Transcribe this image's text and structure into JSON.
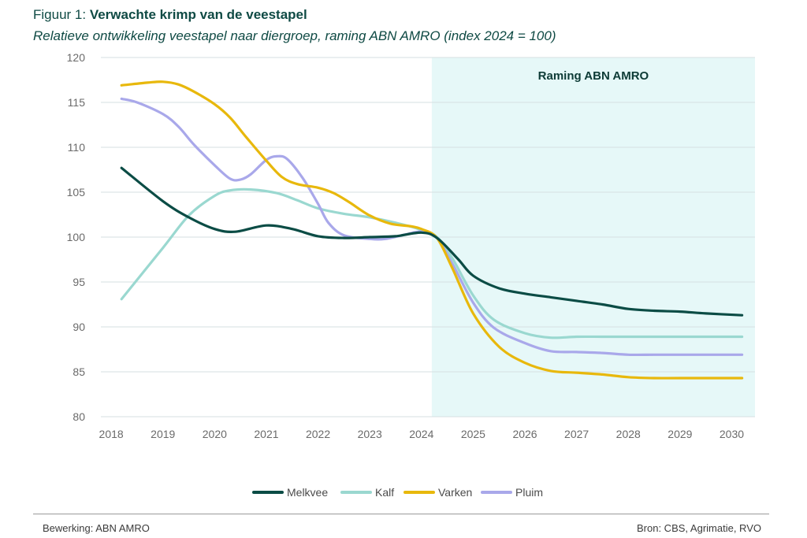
{
  "header": {
    "figure_prefix": "Figuur 1: ",
    "title": "Verwachte krimp van de veestapel",
    "subtitle": "Relatieve ontwikkeling veestapel naar diergroep, raming ABN AMRO (index 2024 = 100)"
  },
  "chart_data": {
    "type": "line",
    "title": "Verwachte krimp van de veestapel",
    "subtitle": "Relatieve ontwikkeling veestapel naar diergroep, raming ABN AMRO (index 2024 = 100)",
    "xlabel": "",
    "ylabel": "",
    "x": [
      2018,
      2019,
      2020,
      2021,
      2022,
      2023,
      2024,
      2025,
      2026,
      2027,
      2028,
      2029,
      2030
    ],
    "x_tick_labels": [
      "2018",
      "2019",
      "2020",
      "2021",
      "2022",
      "2023",
      "2024",
      "2025",
      "2026",
      "2027",
      "2028",
      "2029",
      "2030"
    ],
    "xlim": [
      2017.8,
      2030.45
    ],
    "ylim": [
      80,
      120
    ],
    "y_ticks": [
      80,
      85,
      90,
      95,
      100,
      105,
      110,
      115,
      120
    ],
    "y_tick_labels": [
      "80",
      "85",
      "90",
      "95",
      "100",
      "105",
      "110",
      "115",
      "120"
    ],
    "grid": "horizontal",
    "legend_position": "bottom-center",
    "forecast_region": {
      "label": "Raming ABN AMRO",
      "from": 2024.2,
      "to": 2030.45,
      "color": "#e6f8f8"
    },
    "series": [
      {
        "name": "Melkvee",
        "color": "#0b4c45",
        "points": [
          [
            2018.2,
            107.7
          ],
          [
            2019.0,
            104.0
          ],
          [
            2019.5,
            102.2
          ],
          [
            2020.0,
            100.9
          ],
          [
            2020.4,
            100.6
          ],
          [
            2021.0,
            101.3
          ],
          [
            2021.5,
            100.9
          ],
          [
            2022.0,
            100.1
          ],
          [
            2022.5,
            99.9
          ],
          [
            2023.0,
            100.0
          ],
          [
            2023.5,
            100.1
          ],
          [
            2024.0,
            100.5
          ],
          [
            2024.3,
            99.9
          ],
          [
            2024.7,
            97.6
          ],
          [
            2025.0,
            95.7
          ],
          [
            2025.5,
            94.3
          ],
          [
            2026.0,
            93.7
          ],
          [
            2026.5,
            93.3
          ],
          [
            2027.0,
            92.9
          ],
          [
            2027.5,
            92.5
          ],
          [
            2028.0,
            92.0
          ],
          [
            2028.5,
            91.8
          ],
          [
            2029.0,
            91.7
          ],
          [
            2029.5,
            91.5
          ],
          [
            2030.2,
            91.3
          ]
        ]
      },
      {
        "name": "Kalf",
        "color": "#9ad8d0",
        "points": [
          [
            2018.2,
            93.1
          ],
          [
            2019.0,
            98.8
          ],
          [
            2019.5,
            102.4
          ],
          [
            2020.0,
            104.6
          ],
          [
            2020.3,
            105.2
          ],
          [
            2020.7,
            105.3
          ],
          [
            2021.2,
            104.9
          ],
          [
            2021.6,
            104.1
          ],
          [
            2022.0,
            103.2
          ],
          [
            2022.5,
            102.6
          ],
          [
            2023.0,
            102.2
          ],
          [
            2023.5,
            101.6
          ],
          [
            2024.0,
            100.8
          ],
          [
            2024.3,
            100.0
          ],
          [
            2024.6,
            97.6
          ],
          [
            2025.0,
            93.5
          ],
          [
            2025.4,
            90.8
          ],
          [
            2026.0,
            89.3
          ],
          [
            2026.5,
            88.8
          ],
          [
            2027.0,
            88.9
          ],
          [
            2027.5,
            88.9
          ],
          [
            2028.0,
            88.9
          ],
          [
            2029.0,
            88.9
          ],
          [
            2030.2,
            88.9
          ]
        ]
      },
      {
        "name": "Varken",
        "color": "#e8b80c",
        "points": [
          [
            2018.2,
            116.9
          ],
          [
            2018.7,
            117.2
          ],
          [
            2019.0,
            117.3
          ],
          [
            2019.3,
            117.0
          ],
          [
            2019.6,
            116.2
          ],
          [
            2020.0,
            114.8
          ],
          [
            2020.3,
            113.3
          ],
          [
            2020.6,
            111.2
          ],
          [
            2021.0,
            108.5
          ],
          [
            2021.3,
            106.7
          ],
          [
            2021.6,
            105.9
          ],
          [
            2022.0,
            105.5
          ],
          [
            2022.3,
            104.9
          ],
          [
            2022.6,
            103.9
          ],
          [
            2023.0,
            102.4
          ],
          [
            2023.4,
            101.5
          ],
          [
            2023.8,
            101.2
          ],
          [
            2024.0,
            100.9
          ],
          [
            2024.3,
            99.9
          ],
          [
            2024.6,
            96.5
          ],
          [
            2025.0,
            91.5
          ],
          [
            2025.5,
            87.8
          ],
          [
            2026.0,
            86.0
          ],
          [
            2026.5,
            85.1
          ],
          [
            2027.0,
            84.9
          ],
          [
            2027.5,
            84.7
          ],
          [
            2028.0,
            84.4
          ],
          [
            2028.5,
            84.3
          ],
          [
            2029.0,
            84.3
          ],
          [
            2030.2,
            84.3
          ]
        ]
      },
      {
        "name": "Pluim",
        "color": "#a9a8ea",
        "points": [
          [
            2018.2,
            115.4
          ],
          [
            2018.5,
            115.0
          ],
          [
            2019.0,
            113.7
          ],
          [
            2019.3,
            112.3
          ],
          [
            2019.6,
            110.3
          ],
          [
            2020.0,
            108.0
          ],
          [
            2020.3,
            106.5
          ],
          [
            2020.5,
            106.4
          ],
          [
            2020.7,
            107.0
          ],
          [
            2021.0,
            108.6
          ],
          [
            2021.2,
            109.0
          ],
          [
            2021.4,
            108.7
          ],
          [
            2021.7,
            106.6
          ],
          [
            2022.0,
            103.7
          ],
          [
            2022.2,
            101.6
          ],
          [
            2022.5,
            100.2
          ],
          [
            2023.0,
            99.8
          ],
          [
            2023.3,
            99.8
          ],
          [
            2023.7,
            100.3
          ],
          [
            2024.0,
            100.6
          ],
          [
            2024.3,
            99.9
          ],
          [
            2024.6,
            97.0
          ],
          [
            2025.0,
            92.7
          ],
          [
            2025.4,
            89.9
          ],
          [
            2026.0,
            88.2
          ],
          [
            2026.5,
            87.3
          ],
          [
            2027.0,
            87.2
          ],
          [
            2027.5,
            87.1
          ],
          [
            2028.0,
            86.9
          ],
          [
            2028.5,
            86.9
          ],
          [
            2029.0,
            86.9
          ],
          [
            2030.2,
            86.9
          ]
        ]
      }
    ]
  },
  "footer": {
    "left": "Bewerking: ABN AMRO",
    "right": "Bron: CBS, Agrimatie, RVO"
  }
}
